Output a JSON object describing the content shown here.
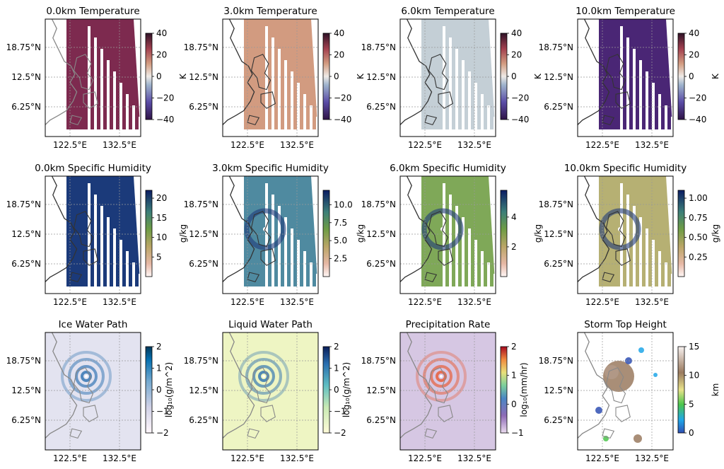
{
  "figure": {
    "lat_ticks": [
      "18.75°N",
      "12.5°N",
      "6.25°N"
    ],
    "lon_ticks": [
      "122.5°E",
      "132.5°E"
    ]
  },
  "chart_data": [
    {
      "type": "heatmap",
      "title": "0.0km Temperature",
      "colorbar": {
        "label": "K",
        "ticks": [
          "40",
          "20",
          "0",
          "−20",
          "−40"
        ],
        "min": -40,
        "max": 40,
        "cmap": "twilight"
      },
      "field": "temp",
      "color": "#7d2a4f",
      "coverage": "granule-stripes"
    },
    {
      "type": "heatmap",
      "title": "3.0km Temperature",
      "colorbar": {
        "label": "K",
        "ticks": [
          "40",
          "20",
          "0",
          "−20",
          "−40"
        ],
        "min": -40,
        "max": 40,
        "cmap": "twilight"
      },
      "field": "temp",
      "color": "#d29b80",
      "coverage": "granule-stripes"
    },
    {
      "type": "heatmap",
      "title": "6.0km Temperature",
      "colorbar": {
        "label": "K",
        "ticks": [
          "40",
          "20",
          "0",
          "−20",
          "−40"
        ],
        "min": -40,
        "max": 40,
        "cmap": "twilight"
      },
      "field": "temp",
      "color": "#c4cfd6",
      "coverage": "granule-stripes"
    },
    {
      "type": "heatmap",
      "title": "10.0km Temperature",
      "colorbar": {
        "label": "K",
        "ticks": [
          "40",
          "20",
          "0",
          "−20",
          "−40"
        ],
        "min": -40,
        "max": 40,
        "cmap": "twilight"
      },
      "field": "temp",
      "color": "#4a2675",
      "coverage": "granule-stripes"
    },
    {
      "type": "heatmap",
      "title": "0.0km Specific Humidity",
      "colorbar": {
        "label": "g/kg",
        "ticks": [
          "20",
          "15",
          "10",
          "5"
        ],
        "min": 0,
        "max": 22,
        "cmap": "gist_earth_r"
      },
      "field": "humidity",
      "color": "#1b3a7a",
      "coverage": "granule-stripes"
    },
    {
      "type": "heatmap",
      "title": "3.0km Specific Humidity",
      "colorbar": {
        "label": "g/kg",
        "ticks": [
          "10.0",
          "7.5",
          "5.0",
          "2.5"
        ],
        "min": 0,
        "max": 12,
        "cmap": "gist_earth_r"
      },
      "field": "humidity",
      "color": "#4f8aa0",
      "coverage": "granule-stripes"
    },
    {
      "type": "heatmap",
      "title": "6.0km Specific Humidity",
      "colorbar": {
        "label": "g/kg",
        "ticks": [
          "4",
          "2"
        ],
        "min": 0,
        "max": 5.8,
        "cmap": "gist_earth_r"
      },
      "field": "humidity",
      "color": "#7fa858",
      "coverage": "granule-stripes"
    },
    {
      "type": "heatmap",
      "title": "10.0km Specific Humidity",
      "colorbar": {
        "label": "g/kg",
        "ticks": [
          "1.00",
          "0.75",
          "0.50",
          "0.25"
        ],
        "min": 0,
        "max": 1.1,
        "cmap": "gist_earth_r"
      },
      "field": "humidity",
      "color": "#b6b073",
      "coverage": "granule-stripes"
    },
    {
      "type": "heatmap",
      "title": "Ice Water Path",
      "colorbar": {
        "label": "log₁₀(g/m^2)",
        "ticks": [
          "2",
          "1",
          "0",
          "−1",
          "−2"
        ],
        "min": -2,
        "max": 2,
        "cmap": "PuBu"
      },
      "field": "path",
      "color": "#e3e3f0",
      "coverage": "swath"
    },
    {
      "type": "heatmap",
      "title": "Liquid Water Path",
      "colorbar": {
        "label": "log₁₀(g/m^2)",
        "ticks": [
          "2",
          "1",
          "0",
          "−1",
          "−2"
        ],
        "min": -2,
        "max": 2,
        "cmap": "YlGnBu"
      },
      "field": "path",
      "color": "#eef5c3",
      "coverage": "swath"
    },
    {
      "type": "heatmap",
      "title": "Precipitation Rate",
      "colorbar": {
        "label": "log₁₀(mm/hr)",
        "ticks": [
          "2",
          "1",
          "0",
          "−1"
        ],
        "min": -1,
        "max": 2,
        "cmap": "Spectral_r"
      },
      "field": "precip",
      "color": "#d6c7e3",
      "coverage": "swath"
    },
    {
      "type": "heatmap",
      "title": "Storm Top Height",
      "colorbar": {
        "label": "km",
        "ticks": [
          "15",
          "10",
          "5",
          "0"
        ],
        "min": 0,
        "max": 15,
        "cmap": "terrain"
      },
      "field": "storm",
      "color": "#ffffff",
      "coverage": "sparse"
    }
  ]
}
